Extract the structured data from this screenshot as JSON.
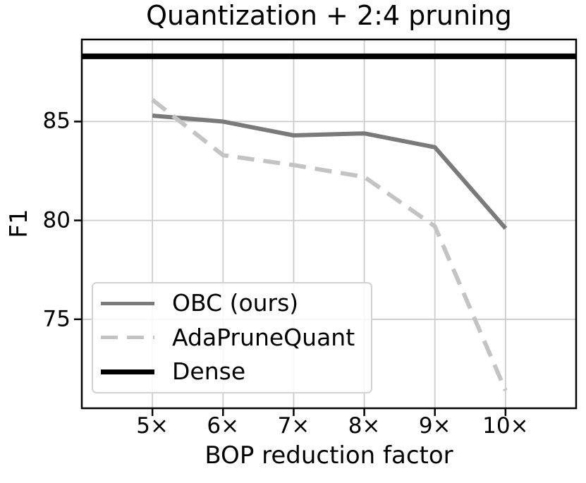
{
  "chart_data": {
    "type": "line",
    "title": "Quantization + 2:4 pruning",
    "xlabel": "BOP reduction factor",
    "ylabel": "F1",
    "x": [
      5,
      6,
      7,
      8,
      9,
      10
    ],
    "x_tick_labels": [
      "5×",
      "6×",
      "7×",
      "8×",
      "9×",
      "10×"
    ],
    "y_ticks": [
      75,
      80,
      85
    ],
    "y_tick_labels": [
      "75",
      "80",
      "85"
    ],
    "xlim": [
      4.0,
      11.0
    ],
    "ylim": [
      70.5,
      89.15
    ],
    "grid": true,
    "legend_position": "lower left",
    "series": [
      {
        "name": "OBC (ours)",
        "type": "line",
        "style": "solid",
        "color": "#7a7a7a",
        "width": 6,
        "x": [
          5,
          6,
          7,
          8,
          9,
          10
        ],
        "y": [
          85.3,
          85.0,
          84.3,
          84.4,
          83.7,
          79.6
        ]
      },
      {
        "name": "AdaPruneQuant",
        "type": "line",
        "style": "dashed",
        "color": "#c3c3c3",
        "width": 6,
        "x": [
          5,
          6,
          7,
          8,
          9,
          10
        ],
        "y": [
          86.1,
          83.3,
          82.8,
          82.2,
          79.7,
          71.4
        ]
      },
      {
        "name": "Dense",
        "type": "hline",
        "style": "solid",
        "color": "#000000",
        "width": 8,
        "y": 88.3
      }
    ],
    "colors": {
      "grid": "#cccccc",
      "spine": "#000000",
      "text": "#000000"
    }
  }
}
